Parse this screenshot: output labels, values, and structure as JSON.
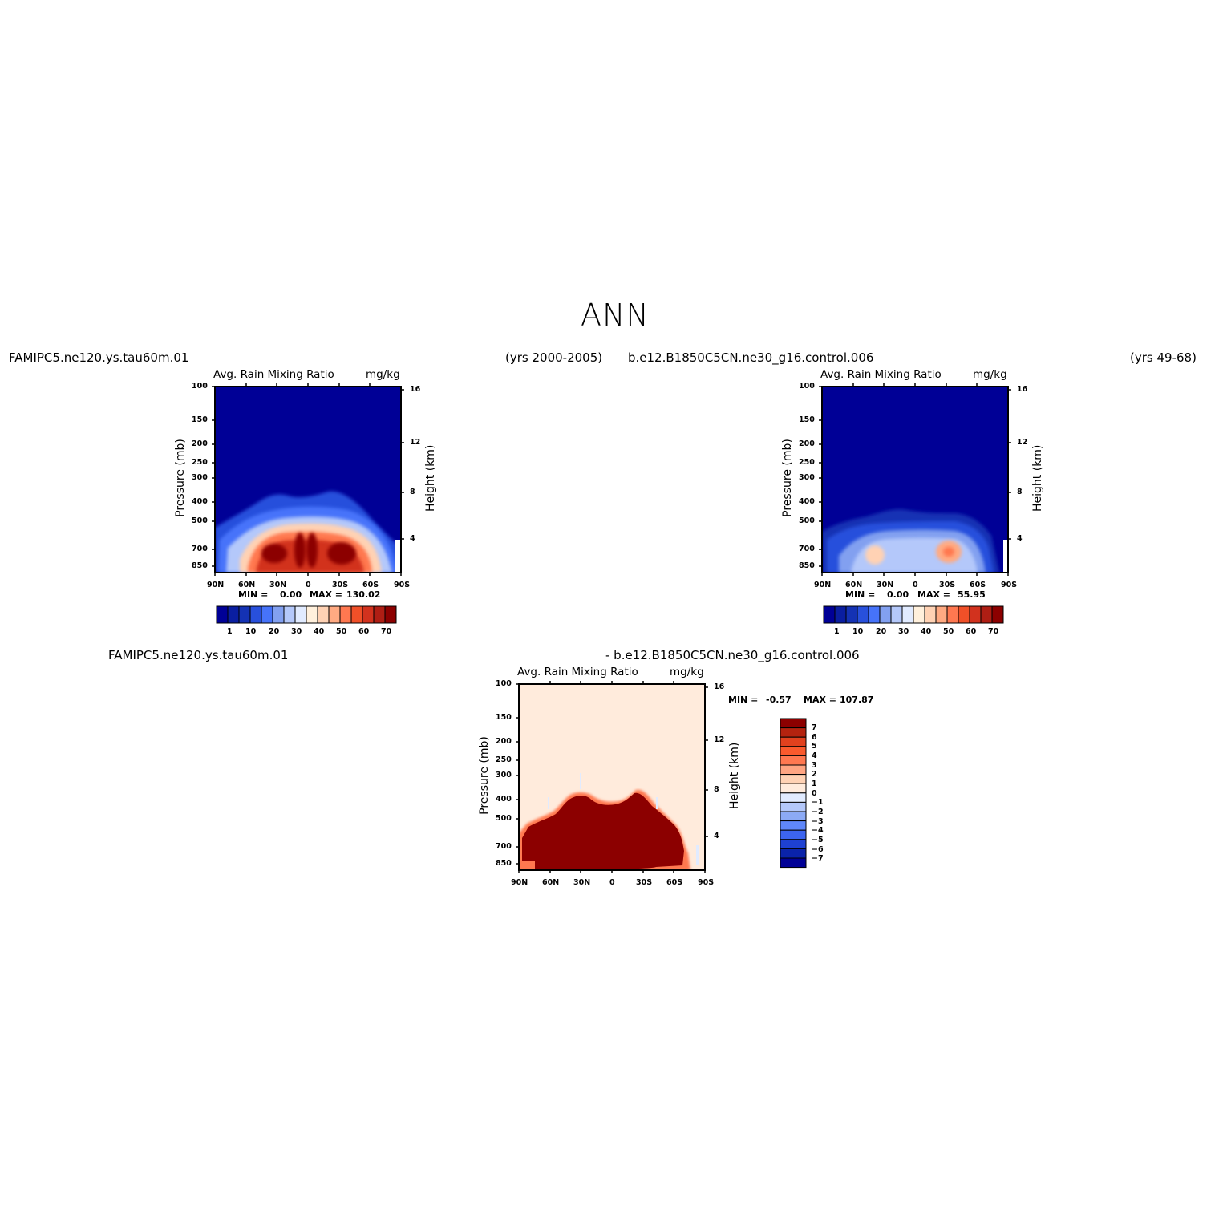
{
  "figure": {
    "title": "ANN",
    "case_a": "FAMIPC5.ne120.ys.tau60m.01",
    "case_a_years": "(yrs 2000-2005)",
    "case_b": "b.e12.B1850C5CN.ne30_g16.control.006",
    "case_b_years": "(yrs 49-68)",
    "diff_case_a": "FAMIPC5.ne120.ys.tau60m.01",
    "diff_case_b": "- b.e12.B1850C5CN.ne30_g16.control.006"
  },
  "chart_data": [
    {
      "type": "heatmap",
      "title": "Avg. Rain Mixing Ratio",
      "units": "mg/kg",
      "xlabel": "",
      "ylabel": "Pressure (mb)",
      "ylabel_right": "Height (km)",
      "x_ticks": [
        "90N",
        "60N",
        "30N",
        "0",
        "30S",
        "60S",
        "90S"
      ],
      "y_ticks": [
        100,
        150,
        200,
        250,
        300,
        400,
        500,
        700,
        850
      ],
      "y_right_ticks": [
        16,
        12,
        8,
        4
      ],
      "ylim": [
        1000,
        100
      ],
      "y_scale": "log",
      "min_label": "MIN =",
      "min": "0.00",
      "max_label": "MAX =",
      "max": "130.02",
      "colorbar_levels": [
        1,
        10,
        20,
        30,
        40,
        50,
        60,
        70
      ],
      "colorbar_orientation": "horizontal",
      "features": [
        {
          "region": "30N-45N",
          "pressure_mb": [
            650,
            1000
          ],
          "value_range": "60-70+"
        },
        {
          "region": "0-10N",
          "pressure_mb": [
            600,
            1000
          ],
          "value_range": "70+"
        },
        {
          "region": "0-10S",
          "pressure_mb": [
            600,
            1000
          ],
          "value_range": "70+"
        },
        {
          "region": "30S-45S",
          "pressure_mb": [
            650,
            1000
          ],
          "value_range": "70+"
        },
        {
          "region": "cloud top",
          "pressure_mb": [
            400,
            500
          ],
          "value_range": "1"
        }
      ]
    },
    {
      "type": "heatmap",
      "title": "Avg. Rain Mixing Ratio",
      "units": "mg/kg",
      "xlabel": "",
      "ylabel": "Pressure (mb)",
      "ylabel_right": "Height (km)",
      "x_ticks": [
        "90N",
        "60N",
        "30N",
        "0",
        "30S",
        "60S",
        "90S"
      ],
      "y_ticks": [
        100,
        150,
        200,
        250,
        300,
        400,
        500,
        700,
        850
      ],
      "y_right_ticks": [
        16,
        12,
        8,
        4
      ],
      "ylim": [
        1000,
        100
      ],
      "y_scale": "log",
      "min_label": "MIN =",
      "min": "0.00",
      "max_label": "MAX =",
      "max": "55.95",
      "colorbar_levels": [
        1,
        10,
        20,
        30,
        40,
        50,
        60,
        70
      ],
      "colorbar_orientation": "horizontal",
      "features": [
        {
          "region": "45N",
          "pressure_mb": [
            700,
            850
          ],
          "value_range": "30-40"
        },
        {
          "region": "30S-35S",
          "pressure_mb": [
            650,
            800
          ],
          "value_range": "50-60"
        },
        {
          "region": "cloud top",
          "pressure_mb": [
            450,
            550
          ],
          "value_range": "1"
        }
      ]
    },
    {
      "type": "heatmap",
      "title": "Avg. Rain Mixing Ratio",
      "units": "mg/kg",
      "xlabel": "",
      "ylabel": "Pressure (mb)",
      "ylabel_right": "Height (km)",
      "x_ticks": [
        "90N",
        "60N",
        "30N",
        "0",
        "30S",
        "60S",
        "90S"
      ],
      "y_ticks": [
        100,
        150,
        200,
        250,
        300,
        400,
        500,
        700,
        850
      ],
      "y_right_ticks": [
        16,
        12,
        8,
        4
      ],
      "ylim": [
        1000,
        100
      ],
      "y_scale": "log",
      "min_label": "MIN =",
      "min": "-0.57",
      "max_label": "MAX =",
      "max": "107.87",
      "colorbar_levels": [
        7,
        6,
        5,
        4,
        3,
        2,
        1,
        0,
        -1,
        -2,
        -3,
        -4,
        -5,
        -6,
        -7
      ],
      "colorbar_level_labels": [
        "7",
        "6",
        "5",
        "4",
        "3",
        "2",
        "1",
        "0",
        "−1",
        "−2",
        "−3",
        "−4",
        "−5",
        "−6",
        "−7"
      ],
      "colorbar_orientation": "vertical",
      "features": [
        {
          "region": "80N-65S",
          "pressure_mb": [
            400,
            1000
          ],
          "value_range": ">7"
        },
        {
          "region": "elsewhere",
          "pressure_mb": [
            100,
            1000
          ],
          "value_range": "0-1"
        }
      ]
    }
  ],
  "colors": {
    "seq": [
      "#000096",
      "#0A1EA0",
      "#1432B4",
      "#2850DC",
      "#4673FA",
      "#82A0F0",
      "#B4C8FA",
      "#E1EBFF",
      "#FFF0DC",
      "#FFD2B4",
      "#FFAA82",
      "#FF7850",
      "#F05028",
      "#D2321E",
      "#AF1E14",
      "#8C0000"
    ],
    "diff": [
      "#8C0000",
      "#B4230F",
      "#E1411E",
      "#FA5A2D",
      "#FF7850",
      "#FFA582",
      "#FFD2B4",
      "#FFEBDC",
      "#E1EBFF",
      "#B4C8FA",
      "#8CAAF5",
      "#5F87FA",
      "#3C64F0",
      "#1E41D2",
      "#0A23AA",
      "#000096"
    ]
  }
}
